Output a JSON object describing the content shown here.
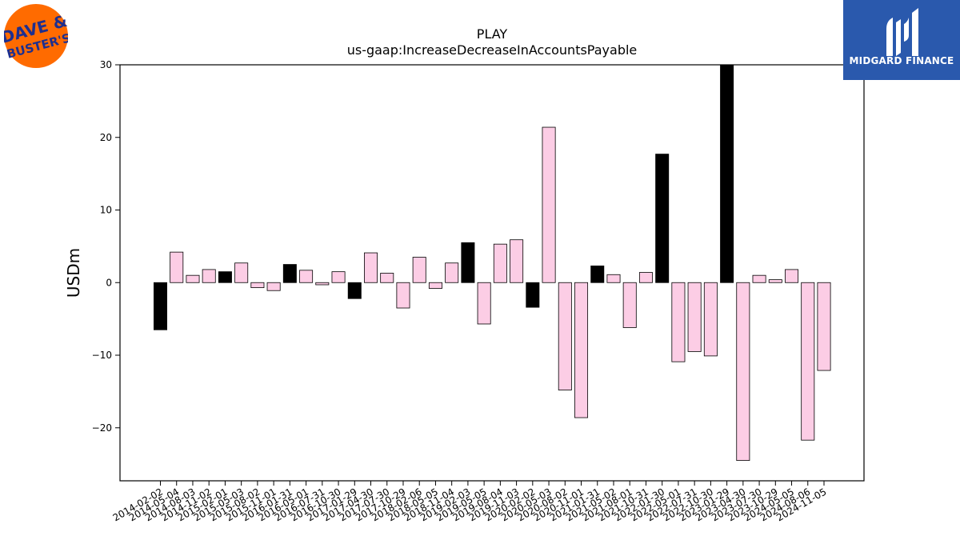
{
  "logos": {
    "left_text_top": "DAVE &",
    "left_text_bottom": "BUSTER'S",
    "right_text": "MIDGARD FINANCE",
    "left_color": "#ff6b00",
    "left_text_color": "#1d2f8f",
    "right_color": "#2a59ad"
  },
  "chart_data": {
    "type": "bar",
    "title": "PLAY",
    "subtitle": "us-gaap:IncreaseDecreaseInAccountsPayable",
    "xlabel": "",
    "ylabel": "USDm",
    "ylim": [
      -27.3,
      30
    ],
    "yticks": [
      -20,
      -10,
      0,
      10,
      20,
      30
    ],
    "grid": false,
    "colors": {
      "annual": "#000000",
      "quarterly": "#fccde5",
      "edge": "#000000"
    },
    "categories": [
      "2014-02-02",
      "2014-05-04",
      "2014-08-03",
      "2014-11-02",
      "2015-02-01",
      "2015-05-03",
      "2015-08-02",
      "2015-11-01",
      "2016-01-31",
      "2016-05-01",
      "2016-07-31",
      "2016-10-30",
      "2017-01-29",
      "2017-04-30",
      "2017-07-30",
      "2017-10-29",
      "2018-02-06",
      "2018-05-05",
      "2018-11-04",
      "2019-02-03",
      "2019-05-05",
      "2019-08-04",
      "2019-11-03",
      "2020-02-02",
      "2020-05-03",
      "2020-08-02",
      "2020-11-01",
      "2021-01-31",
      "2021-05-02",
      "2021-08-01",
      "2021-10-31",
      "2022-01-30",
      "2022-05-01",
      "2022-07-31",
      "2022-10-30",
      "2023-01-29",
      "2023-04-30",
      "2023-07-30",
      "2023-10-29",
      "2024-05-05",
      "2024-08-06",
      "2024-11-05"
    ],
    "values": [
      -6.5,
      4.2,
      1.0,
      1.8,
      1.5,
      2.7,
      -0.7,
      -1.1,
      2.5,
      1.7,
      -0.3,
      1.5,
      -2.2,
      4.1,
      1.3,
      -3.5,
      3.5,
      -0.8,
      2.7,
      5.5,
      -5.7,
      5.3,
      5.9,
      -3.4,
      21.4,
      -14.8,
      -18.6,
      2.3,
      1.1,
      -6.2,
      1.4,
      17.7,
      -10.9,
      -9.5,
      -10.1,
      30.0,
      -24.5,
      1.0,
      0.4,
      1.8,
      -21.7,
      -12.1
    ],
    "annual": [
      true,
      false,
      false,
      false,
      true,
      false,
      false,
      false,
      true,
      false,
      false,
      false,
      true,
      false,
      false,
      false,
      false,
      false,
      false,
      true,
      false,
      false,
      false,
      true,
      false,
      false,
      false,
      true,
      false,
      false,
      false,
      true,
      false,
      false,
      false,
      true,
      false,
      false,
      false,
      false,
      false,
      false
    ]
  }
}
